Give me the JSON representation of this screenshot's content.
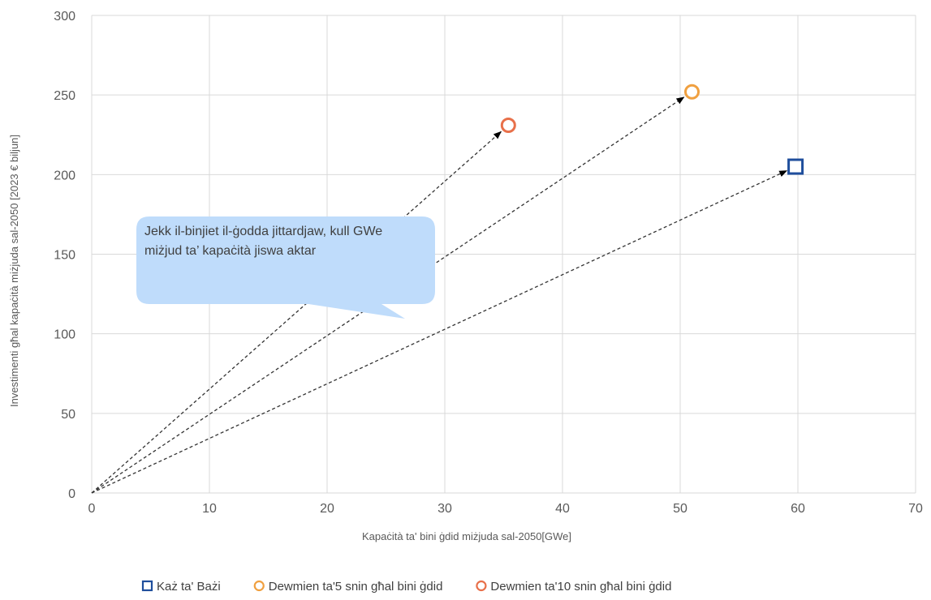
{
  "chart_data": {
    "type": "scatter",
    "title": "",
    "xlabel": "Kapaċità ta' bini ġdid miżjuda sal-2050[GWe]",
    "ylabel": "Investimenti għal kapaċità miżjuda sal-2050 [2023 € biljun]",
    "xlim": [
      0,
      70
    ],
    "ylim": [
      0,
      300
    ],
    "x_ticks": [
      0,
      10,
      20,
      30,
      40,
      50,
      60,
      70
    ],
    "y_ticks": [
      0,
      50,
      100,
      150,
      200,
      250,
      300
    ],
    "grid": true,
    "legend_position": "bottom",
    "series": [
      {
        "name": "Każ ta' Bażi",
        "marker": "square",
        "color": "#1f4e9c",
        "x": [
          59.8
        ],
        "y": [
          205
        ]
      },
      {
        "name": "Dewmien ta'5 snin għal bini ġdid",
        "marker": "circle",
        "color": "#f0a040",
        "x": [
          51
        ],
        "y": [
          252
        ]
      },
      {
        "name": "Dewmien ta'10 snin għal bini ġdid",
        "marker": "circle",
        "color": "#e8704a",
        "x": [
          35.4
        ],
        "y": [
          231
        ]
      }
    ],
    "annotations": [
      {
        "text_lines": [
          "Jekk il-binjiet il-ġodda jittardjaw, kull GWe",
          "miżjud ta’ kapaċità jiswa aktar"
        ],
        "fill": "#bfdcfb"
      }
    ]
  }
}
